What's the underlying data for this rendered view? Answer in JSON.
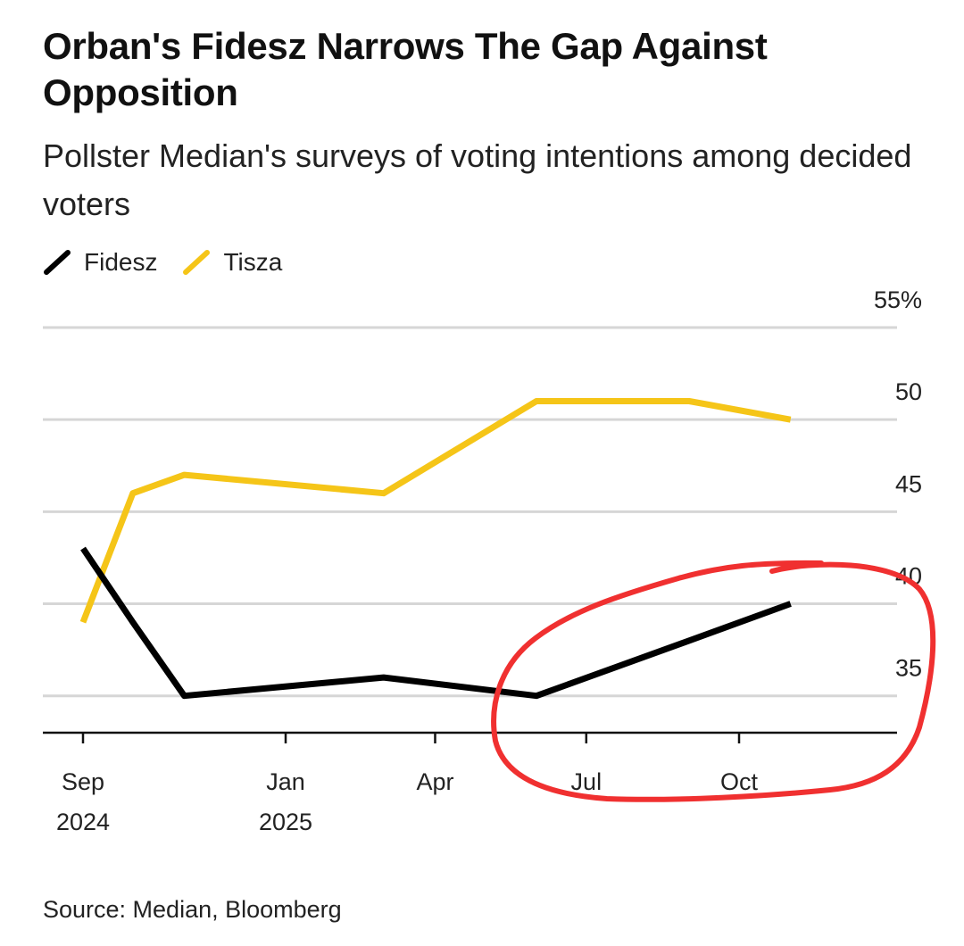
{
  "title": "Orban's Fidesz Narrows The Gap Against Opposition",
  "subtitle": "Pollster Median's surveys of voting intentions among decided voters",
  "legend": [
    {
      "name": "Fidesz",
      "color": "#000000"
    },
    {
      "name": "Tisza",
      "color": "#f5c518"
    }
  ],
  "source": "Source: Median, Bloomberg",
  "annotation": {
    "shape": "hand-drawn circle",
    "color": "#f03030"
  },
  "chart_data": {
    "type": "line",
    "ylim": [
      33,
      55
    ],
    "yticks": [
      {
        "value": 55,
        "label": "55%"
      },
      {
        "value": 50,
        "label": "50"
      },
      {
        "value": 45,
        "label": "45"
      },
      {
        "value": 40,
        "label": "40"
      },
      {
        "value": 35,
        "label": "35"
      }
    ],
    "xlim": [
      "2024-08-15",
      "2025-12-15"
    ],
    "xticks": [
      {
        "date": "2024-09-01",
        "label": "Sep",
        "sublabel": "2024"
      },
      {
        "date": "2025-01-01",
        "label": "Jan",
        "sublabel": "2025"
      },
      {
        "date": "2025-04-01",
        "label": "Apr",
        "sublabel": ""
      },
      {
        "date": "2025-07-01",
        "label": "Jul",
        "sublabel": ""
      },
      {
        "date": "2025-10-01",
        "label": "Oct",
        "sublabel": ""
      }
    ],
    "grid": true,
    "series": [
      {
        "name": "Fidesz",
        "color": "#000000",
        "x": [
          "2024-09-01",
          "2024-10-01",
          "2024-11-01",
          "2025-03-01",
          "2025-06-01",
          "2025-09-01",
          "2025-11-01"
        ],
        "y": [
          43,
          39,
          35,
          36,
          35,
          38,
          40
        ]
      },
      {
        "name": "Tisza",
        "color": "#f5c518",
        "x": [
          "2024-09-01",
          "2024-10-01",
          "2024-11-01",
          "2025-03-01",
          "2025-06-01",
          "2025-09-01",
          "2025-11-01"
        ],
        "y": [
          39,
          46,
          47,
          46,
          51,
          51,
          50
        ]
      }
    ]
  }
}
